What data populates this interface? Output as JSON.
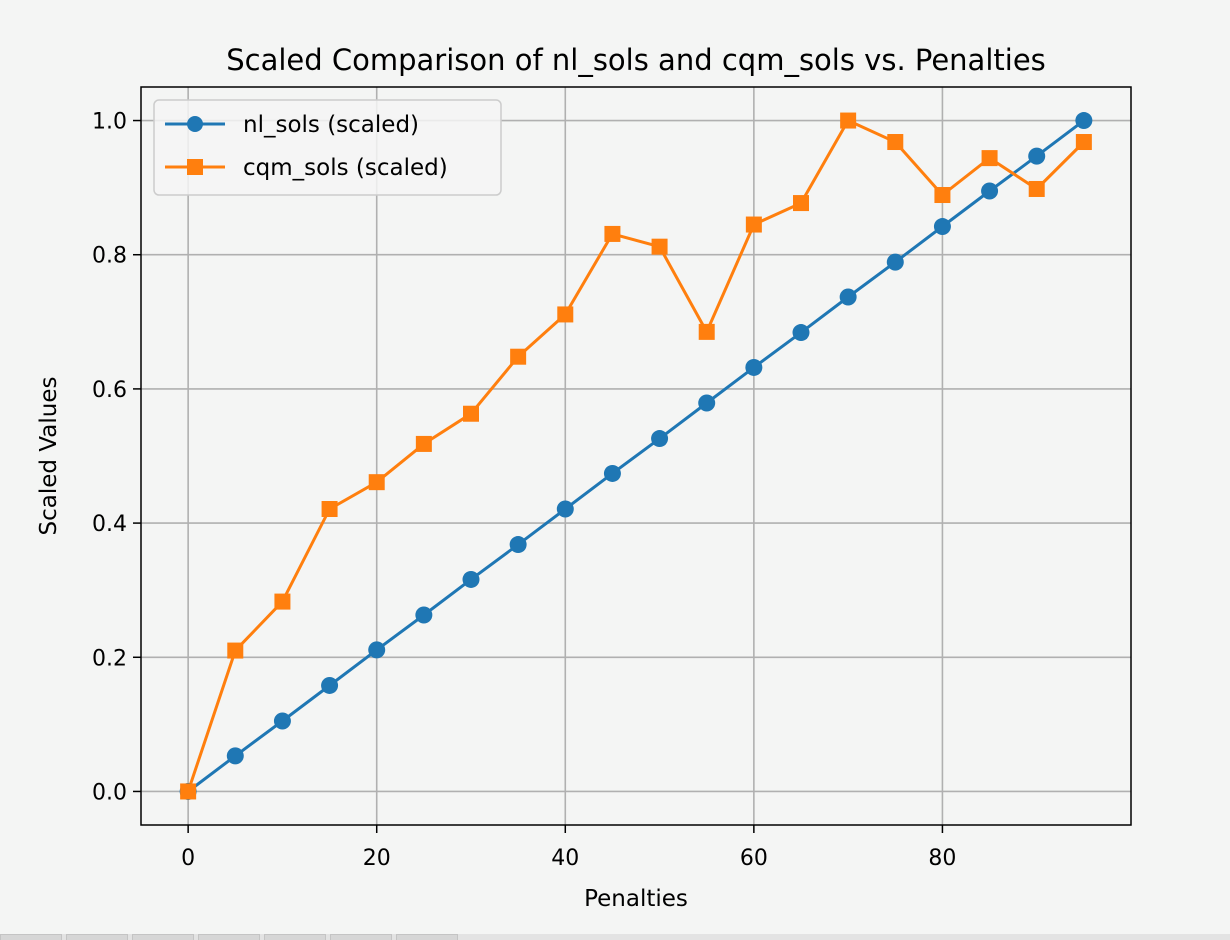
{
  "chart_data": {
    "type": "line",
    "title": "Scaled Comparison of nl_sols and cqm_sols vs. Penalties",
    "xlabel": "Penalties",
    "ylabel": "Scaled Values",
    "xlim": [
      -5,
      100
    ],
    "ylim": [
      -0.05,
      1.05
    ],
    "xticks": [
      0,
      20,
      40,
      60,
      80
    ],
    "yticks": [
      0.0,
      0.2,
      0.4,
      0.6,
      0.8,
      1.0
    ],
    "xtick_labels": [
      "0",
      "20",
      "40",
      "60",
      "80"
    ],
    "ytick_labels": [
      "0.0",
      "0.2",
      "0.4",
      "0.6",
      "0.8",
      "1.0"
    ],
    "grid": true,
    "legend_position": "upper-left",
    "x": [
      0,
      5,
      10,
      15,
      20,
      25,
      30,
      35,
      40,
      45,
      50,
      55,
      60,
      65,
      70,
      75,
      80,
      85,
      90,
      95
    ],
    "series": [
      {
        "name": "nl_sols (scaled)",
        "marker": "circle",
        "color": "#1f77b4",
        "values": [
          0.0,
          0.053,
          0.105,
          0.158,
          0.211,
          0.263,
          0.316,
          0.368,
          0.421,
          0.474,
          0.526,
          0.579,
          0.632,
          0.684,
          0.737,
          0.789,
          0.842,
          0.895,
          0.947,
          1.0
        ]
      },
      {
        "name": "cqm_sols (scaled)",
        "marker": "square",
        "color": "#ff7f0e",
        "values": [
          0.0,
          0.21,
          0.283,
          0.421,
          0.461,
          0.518,
          0.563,
          0.648,
          0.711,
          0.831,
          0.812,
          0.685,
          0.845,
          0.877,
          1.0,
          0.968,
          0.889,
          0.944,
          0.898,
          0.968
        ]
      }
    ]
  }
}
